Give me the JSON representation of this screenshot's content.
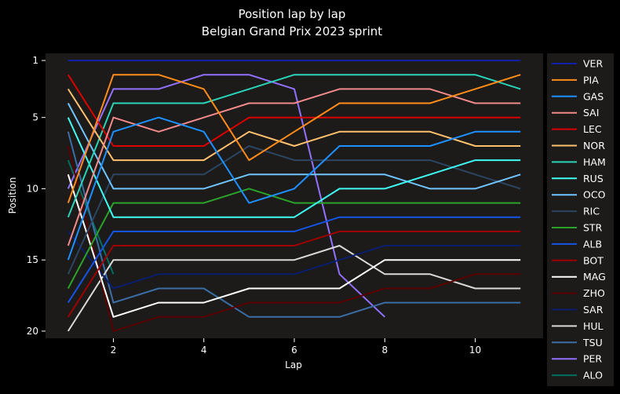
{
  "chart_data": {
    "type": "line",
    "title": "Position lap by lap",
    "subtitle": "Belgian Grand Prix 2023 sprint",
    "xlabel": "Lap",
    "ylabel": "Position",
    "xlim": [
      0.5,
      11.5
    ],
    "ylim": [
      20.5,
      0.5
    ],
    "xticks": [
      2,
      4,
      6,
      8,
      10
    ],
    "yticks": [
      1,
      5,
      10,
      15,
      20
    ],
    "y_inverted": true,
    "grid": false,
    "legend_position": "right",
    "plot_background": "#1c1b1a",
    "series": [
      {
        "name": "VER",
        "color": "#1020a8",
        "x": [
          1,
          2,
          3,
          4,
          5,
          6,
          7,
          8,
          9,
          10,
          11
        ],
        "values": [
          1,
          1,
          1,
          1,
          1,
          1,
          1,
          1,
          1,
          1,
          1
        ]
      },
      {
        "name": "PIA",
        "color": "#ff8c1a",
        "x": [
          1,
          2,
          3,
          4,
          5,
          6,
          7,
          8,
          9,
          10,
          11
        ],
        "values": [
          11,
          2,
          2,
          3,
          8,
          6,
          4,
          4,
          4,
          3,
          2
        ]
      },
      {
        "name": "GAS",
        "color": "#1e90ff",
        "x": [
          1,
          2,
          3,
          4,
          5,
          6,
          7,
          8,
          9,
          10,
          11
        ],
        "values": [
          15,
          6,
          5,
          6,
          11,
          10,
          7,
          7,
          7,
          6,
          6
        ]
      },
      {
        "name": "SAI",
        "color": "#f28a8a",
        "x": [
          1,
          2,
          3,
          4,
          5,
          6,
          7,
          8,
          9,
          10,
          11
        ],
        "values": [
          14,
          5,
          6,
          5,
          4,
          4,
          3,
          3,
          3,
          4,
          4
        ]
      },
      {
        "name": "LEC",
        "color": "#dc0000",
        "x": [
          1,
          2,
          3,
          4,
          5,
          6,
          7,
          8,
          9,
          10,
          11
        ],
        "values": [
          2,
          7,
          7,
          7,
          5,
          5,
          5,
          5,
          5,
          5,
          5
        ]
      },
      {
        "name": "NOR",
        "color": "#ffc06e",
        "x": [
          1,
          2,
          3,
          4,
          5,
          6,
          7,
          8,
          9,
          10,
          11
        ],
        "values": [
          3,
          8,
          8,
          8,
          6,
          7,
          6,
          6,
          6,
          7,
          7
        ]
      },
      {
        "name": "HAM",
        "color": "#2ad4b8",
        "x": [
          1,
          2,
          3,
          4,
          5,
          6,
          7,
          8,
          9,
          10,
          11
        ],
        "values": [
          12,
          4,
          4,
          4,
          3,
          2,
          2,
          2,
          2,
          2,
          3
        ]
      },
      {
        "name": "RUS",
        "color": "#3ffbf4",
        "x": [
          1,
          2,
          3,
          4,
          5,
          6,
          7,
          8,
          9,
          10,
          11
        ],
        "values": [
          5,
          12,
          12,
          12,
          12,
          12,
          10,
          10,
          9,
          8,
          8
        ]
      },
      {
        "name": "OCO",
        "color": "#70c4ff",
        "x": [
          1,
          2,
          3,
          4,
          5,
          6,
          7,
          8,
          9,
          10,
          11
        ],
        "values": [
          4,
          10,
          10,
          10,
          9,
          9,
          9,
          9,
          10,
          10,
          9
        ]
      },
      {
        "name": "RIC",
        "color": "#2b4562",
        "x": [
          1,
          2,
          3,
          4,
          5,
          6,
          7,
          8,
          9,
          10,
          11
        ],
        "values": [
          16,
          9,
          9,
          9,
          7,
          8,
          8,
          8,
          8,
          9,
          10
        ]
      },
      {
        "name": "STR",
        "color": "#2ba32b",
        "x": [
          1,
          2,
          3,
          4,
          5,
          6,
          7,
          8,
          9,
          10,
          11
        ],
        "values": [
          17,
          11,
          11,
          11,
          10,
          11,
          11,
          11,
          11,
          11,
          11
        ]
      },
      {
        "name": "ALB",
        "color": "#1455e6",
        "x": [
          1,
          2,
          3,
          4,
          5,
          6,
          7,
          8,
          9,
          10,
          11
        ],
        "values": [
          18,
          13,
          13,
          13,
          13,
          13,
          12,
          12,
          12,
          12,
          12
        ]
      },
      {
        "name": "BOT",
        "color": "#a00000",
        "x": [
          1,
          2,
          3,
          4,
          5,
          6,
          7,
          8,
          9,
          10,
          11
        ],
        "values": [
          19,
          14,
          14,
          14,
          14,
          14,
          13,
          13,
          13,
          13,
          13
        ]
      },
      {
        "name": "MAG",
        "color": "#ffffff",
        "x": [
          1,
          2,
          3,
          4,
          5,
          6,
          7,
          8,
          9,
          10,
          11
        ],
        "values": [
          9,
          19,
          18,
          18,
          17,
          17,
          17,
          15,
          15,
          15,
          15
        ]
      },
      {
        "name": "ZHO",
        "color": "#5a0000",
        "x": [
          1,
          2,
          3,
          4,
          5,
          6,
          7,
          8,
          9,
          10,
          11
        ],
        "values": [
          7,
          20,
          19,
          19,
          18,
          18,
          18,
          17,
          17,
          16,
          16
        ]
      },
      {
        "name": "SAR",
        "color": "#0a1e6e",
        "x": [
          1,
          2,
          3,
          4,
          5,
          6,
          7,
          8,
          9,
          10,
          11
        ],
        "values": [
          13,
          17,
          16,
          16,
          16,
          16,
          15,
          14,
          14,
          14,
          14
        ]
      },
      {
        "name": "HUL",
        "color": "#d9d9d9",
        "x": [
          1,
          2,
          3,
          4,
          5,
          6,
          7,
          8,
          9,
          10,
          11
        ],
        "values": [
          20,
          15,
          15,
          15,
          15,
          15,
          14,
          16,
          16,
          17,
          17
        ]
      },
      {
        "name": "TSU",
        "color": "#3a6ea5",
        "x": [
          1,
          2,
          3,
          4,
          5,
          6,
          7,
          8,
          9,
          10,
          11
        ],
        "values": [
          6,
          18,
          17,
          17,
          19,
          19,
          19,
          18,
          18,
          18,
          18
        ]
      },
      {
        "name": "PER",
        "color": "#9370ff",
        "x": [
          1,
          2,
          3,
          4,
          5,
          6,
          7,
          8
        ],
        "values": [
          10,
          3,
          3,
          2,
          2,
          3,
          16,
          19
        ]
      },
      {
        "name": "ALO",
        "color": "#006f62",
        "x": [
          1,
          2
        ],
        "values": [
          8,
          16
        ]
      }
    ]
  }
}
